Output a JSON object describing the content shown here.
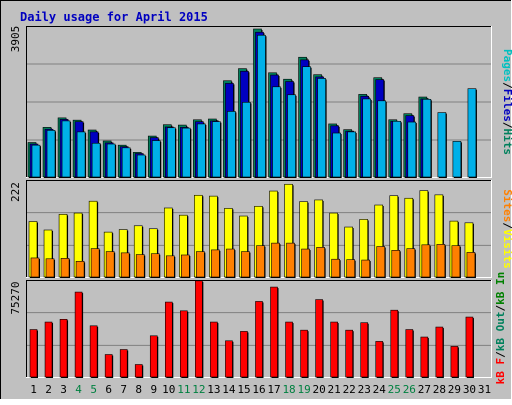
{
  "title": "Daily usage for April 2015",
  "colors": {
    "frame_bg": "#c0c0c0",
    "plot_bg": "#c0c0c0",
    "title_color": "#0000c0",
    "pages": "#00c0c0",
    "files": "#0000c0",
    "hits": "#00805c",
    "visits": "#ffff00",
    "sites": "#ff8000",
    "kb_in": "#008000",
    "kb_out": "#00805c",
    "kb_f": "#ff0000",
    "weekend_label": "#008040",
    "weekday_label": "#000000"
  },
  "chart_data": [
    {
      "type": "bar",
      "panel": "hits-files-pages",
      "ymax_label": "3905",
      "ylim": [
        0,
        3905
      ],
      "legend": {
        "pages": "Pages",
        "sep1": "/",
        "files": "Files",
        "sep2": "/",
        "hits": "Hits"
      },
      "categories": [
        "1",
        "2",
        "3",
        "4",
        "5",
        "6",
        "7",
        "8",
        "9",
        "10",
        "11",
        "12",
        "13",
        "14",
        "15",
        "16",
        "17",
        "18",
        "19",
        "20",
        "21",
        "22",
        "23",
        "24",
        "25",
        "26",
        "27",
        "28",
        "29",
        "30",
        "31"
      ],
      "weekend_days": [
        "4",
        "5",
        "11",
        "12",
        "18",
        "19",
        "25",
        "26"
      ],
      "series": [
        {
          "name": "Hits",
          "values": [
            910,
            1310,
            1560,
            1500,
            1240,
            950,
            840,
            650,
            1080,
            1380,
            1370,
            1510,
            1530,
            2540,
            2860,
            3905,
            2750,
            2580,
            3160,
            2700,
            1400,
            1250,
            2180,
            2620,
            1510,
            1670,
            2110,
            0,
            0,
            0,
            0
          ]
        },
        {
          "name": "Files",
          "values": [
            870,
            1260,
            1520,
            1460,
            1190,
            900,
            800,
            620,
            1040,
            1320,
            1310,
            1460,
            1480,
            2470,
            2790,
            3820,
            2690,
            2520,
            3090,
            2640,
            1350,
            1210,
            2130,
            2570,
            1470,
            1620,
            2060,
            0,
            0,
            0,
            0
          ]
        },
        {
          "name": "Pages",
          "values": [
            840,
            1230,
            1480,
            1190,
            890,
            870,
            770,
            580,
            960,
            1300,
            1290,
            1400,
            1460,
            1730,
            1970,
            3740,
            2380,
            2170,
            2910,
            2600,
            1160,
            1190,
            2060,
            2010,
            1470,
            1450,
            2050,
            1700,
            940,
            2330,
            0
          ]
        }
      ]
    },
    {
      "type": "bar",
      "panel": "visits-sites",
      "ymax_label": "222",
      "ylim": [
        0,
        222
      ],
      "legend": {
        "sites": "Sites",
        "sep1": "/",
        "visits": "Visits"
      },
      "categories": [
        "1",
        "2",
        "3",
        "4",
        "5",
        "6",
        "7",
        "8",
        "9",
        "10",
        "11",
        "12",
        "13",
        "14",
        "15",
        "16",
        "17",
        "18",
        "19",
        "20",
        "21",
        "22",
        "23",
        "24",
        "25",
        "26",
        "27",
        "28",
        "29",
        "30",
        "31"
      ],
      "series": [
        {
          "name": "Visits",
          "values": [
            131,
            111,
            148,
            151,
            179,
            106,
            112,
            121,
            114,
            163,
            146,
            193,
            191,
            162,
            144,
            167,
            203,
            219,
            178,
            182,
            151,
            118,
            136,
            170,
            192,
            186,
            204,
            194,
            132,
            128,
            0
          ]
        },
        {
          "name": "Sites",
          "values": [
            45,
            43,
            44,
            37,
            67,
            60,
            57,
            53,
            55,
            50,
            52,
            60,
            64,
            66,
            60,
            74,
            80,
            80,
            66,
            70,
            42,
            41,
            40,
            72,
            63,
            67,
            76,
            77,
            74,
            58,
            0
          ]
        }
      ]
    },
    {
      "type": "bar",
      "panel": "kbytes",
      "ymax_label": "75270",
      "ylim": [
        0,
        75270
      ],
      "legend": {
        "kb_f": "kB F",
        "sep1": "/",
        "kb_out": "kB Out",
        "sep2": "/",
        "kb_in": "kB In"
      },
      "categories": [
        "1",
        "2",
        "3",
        "4",
        "5",
        "6",
        "7",
        "8",
        "9",
        "10",
        "11",
        "12",
        "13",
        "14",
        "15",
        "16",
        "17",
        "18",
        "19",
        "20",
        "21",
        "22",
        "23",
        "24",
        "25",
        "26",
        "27",
        "28",
        "29",
        "30",
        "31"
      ],
      "series": [
        {
          "name": "kB F",
          "values": [
            38000,
            44000,
            46200,
            68000,
            41000,
            18000,
            22000,
            10000,
            33000,
            60000,
            53000,
            77000,
            44000,
            29000,
            36500,
            60500,
            72000,
            44000,
            37500,
            62000,
            44000,
            37500,
            43500,
            28500,
            53500,
            38000,
            32000,
            40000,
            24500,
            48000,
            0
          ]
        }
      ]
    }
  ]
}
